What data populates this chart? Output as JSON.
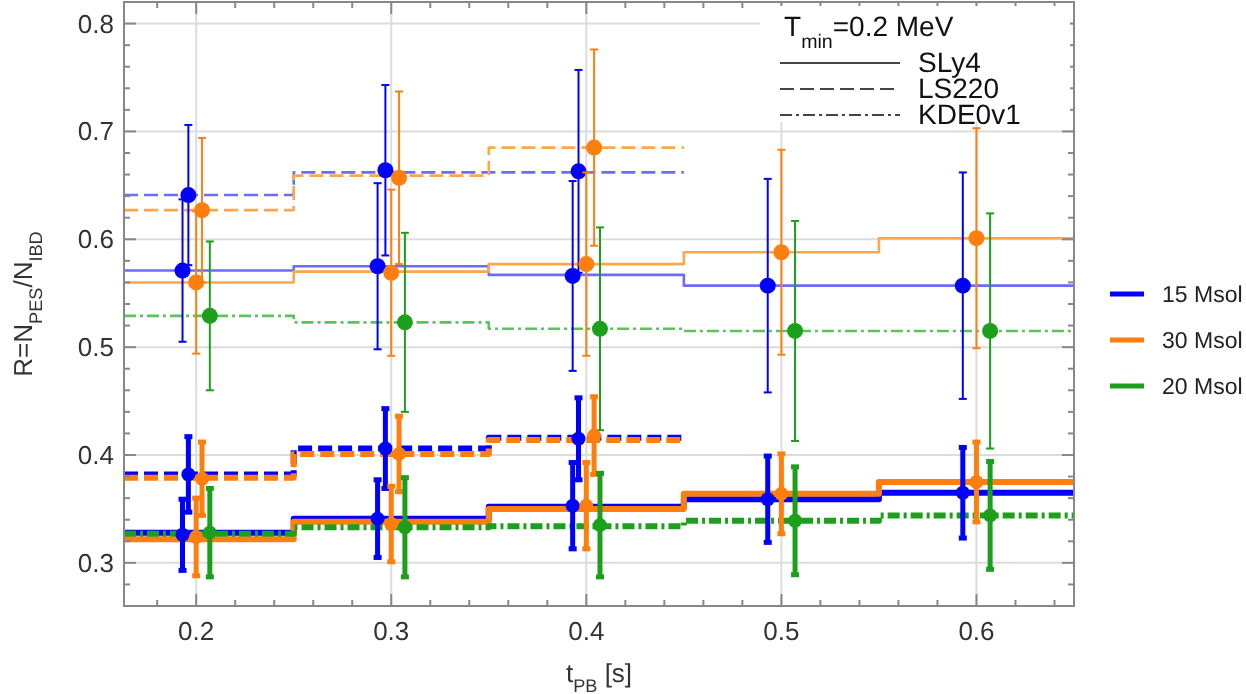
{
  "chart_data": {
    "type": "scatter",
    "xlabel": "t$_{PB}$ [s]",
    "ylabel": "R=N$_{PES}$/N$_{IBD}$",
    "xlim": [
      0.163,
      0.65
    ],
    "ylim": [
      0.26,
      0.82
    ],
    "xticks": [
      {
        "value": 0.18,
        "label": null
      },
      0.2,
      {
        "value": 0.22,
        "label": null
      },
      {
        "value": 0.24,
        "label": null
      },
      {
        "value": 0.26,
        "label": null
      },
      {
        "value": 0.28,
        "label": null
      },
      0.3,
      {
        "value": 0.32,
        "label": null
      },
      {
        "value": 0.34,
        "label": null
      },
      {
        "value": 0.36,
        "label": null
      },
      {
        "value": 0.38,
        "label": null
      },
      0.4,
      {
        "value": 0.42,
        "label": null
      },
      {
        "value": 0.44,
        "label": null
      },
      {
        "value": 0.46,
        "label": null
      },
      {
        "value": 0.48,
        "label": null
      },
      0.5,
      {
        "value": 0.52,
        "label": null
      },
      {
        "value": 0.54,
        "label": null
      },
      {
        "value": 0.56,
        "label": null
      },
      {
        "value": 0.58,
        "label": null
      },
      0.6,
      {
        "value": 0.62,
        "label": null
      },
      {
        "value": 0.64,
        "label": null
      }
    ],
    "yticks": [
      {
        "value": 0.28,
        "label": null
      },
      0.3,
      {
        "value": 0.32,
        "label": null
      },
      {
        "value": 0.34,
        "label": null
      },
      {
        "value": 0.36,
        "label": null
      },
      {
        "value": 0.38,
        "label": null
      },
      0.4,
      {
        "value": 0.42,
        "label": null
      },
      {
        "value": 0.44,
        "label": null
      },
      {
        "value": 0.46,
        "label": null
      },
      {
        "value": 0.48,
        "label": null
      },
      0.5,
      {
        "value": 0.52,
        "label": null
      },
      {
        "value": 0.54,
        "label": null
      },
      {
        "value": 0.56,
        "label": null
      },
      {
        "value": 0.58,
        "label": null
      },
      0.6,
      {
        "value": 0.62,
        "label": null
      },
      {
        "value": 0.64,
        "label": null
      },
      {
        "value": 0.66,
        "label": null
      },
      {
        "value": 0.68,
        "label": null
      },
      0.7,
      {
        "value": 0.72,
        "label": null
      },
      {
        "value": 0.74,
        "label": null
      },
      {
        "value": 0.76,
        "label": null
      },
      {
        "value": 0.78,
        "label": null
      },
      0.8
    ],
    "grid": true,
    "legend": "right",
    "marker": "circle",
    "annotations": [
      "T$_{min}$=0.2 MeV",
      "SLy4",
      "LS220",
      "KDE0v1"
    ],
    "series": [
      {
        "type": "step",
        "marker": "none",
        "color": "#6b6bff",
        "line_style": "solid",
        "x": [
          0.163,
          0.25,
          0.35,
          0.45,
          0.55,
          0.65
        ],
        "values": [
          0.571,
          0.575,
          0.567,
          0.557,
          0.557,
          0.557
        ]
      },
      {
        "type": "step",
        "marker": "none",
        "color": "#6b6bff",
        "line_style": "dashed",
        "x": [
          0.163,
          0.25,
          0.35,
          0.45
        ],
        "values": [
          0.641,
          0.662,
          0.662,
          0.662
        ]
      },
      {
        "type": "step",
        "marker": "none",
        "color": "#ffa64d",
        "line_style": "solid",
        "x": [
          0.163,
          0.25,
          0.35,
          0.45,
          0.55,
          0.65
        ],
        "values": [
          0.56,
          0.57,
          0.577,
          0.588,
          0.601,
          0.601
        ]
      },
      {
        "type": "step",
        "marker": "none",
        "color": "#ffa64d",
        "line_style": "dashed",
        "x": [
          0.163,
          0.25,
          0.35,
          0.45
        ],
        "values": [
          0.627,
          0.659,
          0.685,
          0.685
        ]
      },
      {
        "type": "step",
        "marker": "none",
        "color": "#5cc25c",
        "line_style": "dotted",
        "x": [
          0.163,
          0.25,
          0.35,
          0.45,
          0.55,
          0.65
        ],
        "values": [
          0.529,
          0.523,
          0.517,
          0.515,
          0.515,
          0.515
        ]
      },
      {
        "color": "#0000ff",
        "x": [
          0.193,
          0.293,
          0.393,
          0.493,
          0.593
        ],
        "values": [
          0.571,
          0.575,
          0.566,
          0.557,
          0.557
        ],
        "errors": [
          0.066,
          0.077,
          0.088,
          0.099,
          0.105
        ]
      },
      {
        "color": "#0000ff",
        "x": [
          0.196,
          0.297,
          0.396
        ],
        "values": [
          0.641,
          0.664,
          0.663
        ],
        "errors": [
          0.065,
          0.079,
          0.094
        ]
      },
      {
        "color": "#ff7f0e",
        "x": [
          0.2,
          0.3,
          0.4,
          0.5,
          0.6
        ],
        "values": [
          0.56,
          0.569,
          0.577,
          0.588,
          0.601
        ],
        "errors": [
          0.066,
          0.077,
          0.085,
          0.095,
          0.102
        ]
      },
      {
        "color": "#ff7f0e",
        "x": [
          0.203,
          0.304,
          0.404
        ],
        "values": [
          0.627,
          0.657,
          0.685
        ],
        "errors": [
          0.067,
          0.08,
          0.091
        ]
      },
      {
        "color": "#1ca01c",
        "x": [
          0.207,
          0.307,
          0.407,
          0.507,
          0.607
        ],
        "values": [
          0.529,
          0.523,
          0.517,
          0.515,
          0.515
        ],
        "errors": [
          0.069,
          0.083,
          0.094,
          0.102,
          0.109
        ]
      },
      {
        "type": "step",
        "marker": "none",
        "name": "15 Msol",
        "color": "#0000ff",
        "line_style": "solid",
        "x": [
          0.163,
          0.25,
          0.35,
          0.45,
          0.55,
          0.65
        ],
        "values": [
          0.328,
          0.341,
          0.352,
          0.359,
          0.365,
          0.365
        ]
      },
      {
        "type": "step",
        "marker": "none",
        "color": "#0000ff",
        "line_style": "dashed",
        "x": [
          0.163,
          0.25,
          0.35,
          0.45
        ],
        "values": [
          0.382,
          0.406,
          0.416,
          0.416
        ]
      },
      {
        "type": "step",
        "marker": "none",
        "name": "30 Msol",
        "color": "#ff7f0e",
        "line_style": "solid",
        "x": [
          0.163,
          0.25,
          0.35,
          0.45,
          0.55,
          0.65
        ],
        "values": [
          0.322,
          0.338,
          0.35,
          0.364,
          0.375,
          0.375
        ]
      },
      {
        "type": "step",
        "marker": "none",
        "color": "#ff7f0e",
        "line_style": "dashed",
        "x": [
          0.163,
          0.25,
          0.35,
          0.45
        ],
        "values": [
          0.379,
          0.401,
          0.414,
          0.414
        ]
      },
      {
        "type": "step",
        "marker": "none",
        "name": "20 Msol",
        "color": "#1ca01c",
        "line_style": "dotted",
        "x": [
          0.163,
          0.25,
          0.35,
          0.45,
          0.55,
          0.65
        ],
        "values": [
          0.327,
          0.333,
          0.334,
          0.339,
          0.344,
          0.344
        ]
      },
      {
        "color": "#0000ff",
        "x": [
          0.193,
          0.293,
          0.393,
          0.493,
          0.593
        ],
        "values": [
          0.326,
          0.341,
          0.353,
          0.359,
          0.365
        ],
        "errors": [
          0.033,
          0.036,
          0.04,
          0.04,
          0.042
        ]
      },
      {
        "color": "#0000ff",
        "x": [
          0.196,
          0.297,
          0.396
        ],
        "values": [
          0.382,
          0.406,
          0.415
        ],
        "errors": [
          0.035,
          0.037,
          0.038
        ]
      },
      {
        "color": "#ff7f0e",
        "x": [
          0.2,
          0.3,
          0.4,
          0.5,
          0.6
        ],
        "values": [
          0.324,
          0.336,
          0.353,
          0.364,
          0.375
        ],
        "errors": [
          0.036,
          0.035,
          0.04,
          0.037,
          0.037
        ]
      },
      {
        "color": "#ff7f0e",
        "x": [
          0.203,
          0.304,
          0.404
        ],
        "values": [
          0.378,
          0.401,
          0.418
        ],
        "errors": [
          0.034,
          0.035,
          0.036
        ]
      },
      {
        "color": "#1ca01c",
        "x": [
          0.207,
          0.307,
          0.407,
          0.507,
          0.607
        ],
        "values": [
          0.328,
          0.333,
          0.335,
          0.339,
          0.344
        ],
        "errors": [
          0.041,
          0.046,
          0.048,
          0.05,
          0.05
        ]
      }
    ]
  }
}
